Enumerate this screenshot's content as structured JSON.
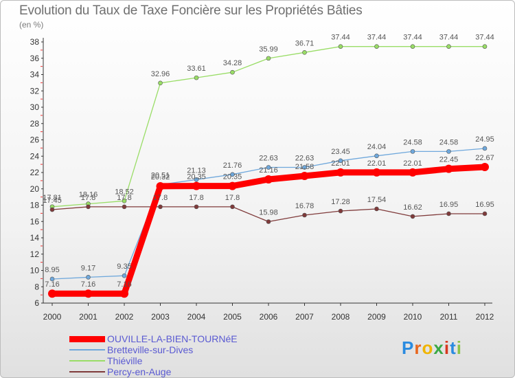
{
  "chart_data": {
    "type": "line",
    "title": "Evolution du Taux de Taxe Foncière sur les Propriétés Bâties",
    "ylabel": "(en %)",
    "xlabel": "",
    "x": [
      "2000",
      "2001",
      "2002",
      "2003",
      "2004",
      "2005",
      "2006",
      "2007",
      "2008",
      "2009",
      "2010",
      "2011",
      "2012"
    ],
    "ylim": [
      6,
      38
    ],
    "yticks": [
      6,
      8,
      10,
      12,
      14,
      16,
      18,
      20,
      22,
      24,
      26,
      28,
      30,
      32,
      34,
      36,
      38
    ],
    "ytick_labels": [
      "6",
      "8",
      "10",
      "12",
      "14",
      "16",
      "18",
      "20",
      "22",
      "24",
      "26",
      "28",
      "30",
      "32",
      "34",
      "36",
      "38"
    ],
    "grid": false,
    "series": [
      {
        "name": "OUVILLE-LA-BIEN-TOURNéE",
        "color": "#ff0000",
        "values": [
          7.16,
          7.16,
          7.16,
          20.32,
          20.35,
          20.35,
          21.16,
          21.58,
          22.01,
          22.01,
          22.01,
          22.45,
          22.67
        ],
        "labels": [
          "7.16",
          "7.16",
          "7.16",
          "20.32",
          "20.35",
          "20.35",
          "21.16",
          "21.58",
          "22.01",
          "22.01",
          "22.01",
          "22.45",
          "22.67"
        ]
      },
      {
        "name": "Bretteville-sur-Dives",
        "color": "#6fa8dc",
        "values": [
          8.95,
          9.17,
          9.35,
          20.51,
          21.13,
          21.76,
          22.63,
          22.63,
          23.45,
          24.04,
          24.58,
          24.58,
          24.95
        ],
        "labels": [
          "8.95",
          "9.17",
          "9.35",
          "20.51",
          "21.13",
          "21.76",
          "22.63",
          "22.63",
          "23.45",
          "24.04",
          "24.58",
          "24.58",
          "24.95"
        ]
      },
      {
        "name": "Thiéville",
        "color": "#99dd66",
        "values": [
          17.81,
          18.16,
          18.52,
          32.96,
          33.61,
          34.28,
          35.99,
          36.71,
          37.44,
          37.44,
          37.44,
          37.44,
          37.44
        ],
        "labels": [
          "17.81",
          "18.16",
          "18.52",
          "32.96",
          "33.61",
          "34.28",
          "35.99",
          "36.71",
          "37.44",
          "37.44",
          "37.44",
          "37.44",
          "37.44"
        ]
      },
      {
        "name": "Percy-en-Auge",
        "color": "#7f3a3a",
        "values": [
          17.45,
          17.8,
          17.8,
          17.8,
          17.8,
          17.8,
          15.98,
          16.78,
          17.28,
          17.54,
          16.62,
          16.95,
          16.95
        ],
        "labels": [
          "17.45",
          "17.8",
          "17.8",
          "17.8",
          "17.8",
          "17.8",
          "15.98",
          "16.78",
          "17.28",
          "17.54",
          "16.62",
          "16.95",
          "16.95"
        ]
      }
    ],
    "legend_position": "bottom-left"
  },
  "logo": {
    "letters": [
      "P",
      "r",
      "o",
      "x",
      "i",
      "t",
      "i"
    ],
    "colors": [
      "#2a8be0",
      "#e8661d",
      "#f0b400",
      "#3aa845",
      "#d7381f",
      "#2a8be0",
      "#8bc34a"
    ]
  }
}
